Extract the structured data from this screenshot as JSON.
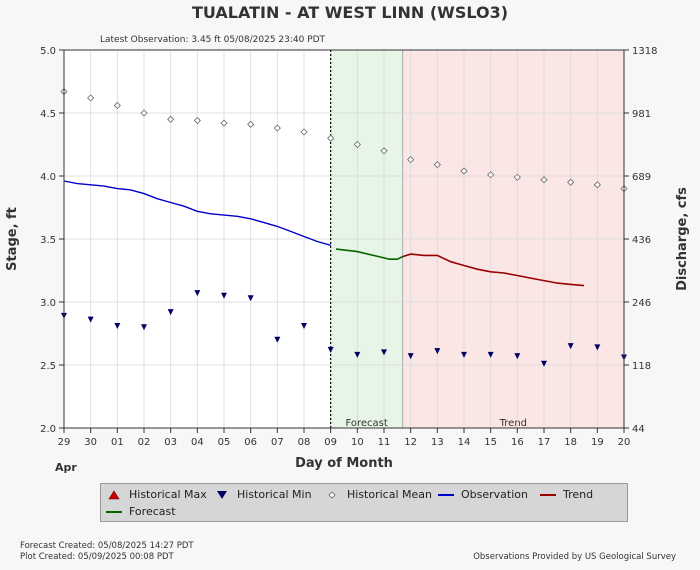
{
  "header": {
    "title": "TUALATIN - AT WEST LINN  (WSLO3)",
    "latest_observation": "Latest Observation: 3.45 ft 05/08/2025 23:40 PDT"
  },
  "footer": {
    "forecast_created": "Forecast Created: 05/08/2025 14:27 PDT",
    "plot_created": "Plot Created: 05/09/2025 00:08 PDT",
    "credit": "Observations Provided by US Geological Survey"
  },
  "legend": {
    "historical_max": "Historical Max",
    "historical_min": "Historical Min",
    "historical_mean": "Historical Mean",
    "observation": "Observation",
    "trend": "Trend",
    "forecast": "Forecast"
  },
  "colors": {
    "observation": "#0000cc",
    "forecast": "#006600",
    "trend": "#990000",
    "forecast_band": "#e6f5e6",
    "trend_band": "#fbe6e6",
    "max_marker": "#cc0000",
    "min_marker": "#000066",
    "mean_marker": "#666666"
  },
  "chart_data": {
    "type": "line",
    "xlabel": "Day of Month",
    "ylabel": "Stage, ft",
    "ylabel_right": "Discharge, cfs",
    "month_label": "Apr",
    "xlim": [
      0,
      21
    ],
    "ylim": [
      2.0,
      5.0
    ],
    "x_tick_labels": [
      "29",
      "30",
      "01",
      "02",
      "03",
      "04",
      "05",
      "06",
      "07",
      "08",
      "09",
      "10",
      "11",
      "12",
      "13",
      "14",
      "15",
      "16",
      "17",
      "18",
      "19",
      "20"
    ],
    "y_ticks": [
      2.0,
      2.5,
      3.0,
      3.5,
      4.0,
      4.5,
      5.0
    ],
    "y_tick_labels": [
      "2.0",
      "2.5",
      "3.0",
      "3.5",
      "4.0",
      "4.5",
      "5.0"
    ],
    "right_ticks": [
      {
        "stage": 2.0,
        "label": "44"
      },
      {
        "stage": 2.5,
        "label": "118"
      },
      {
        "stage": 3.0,
        "label": "246"
      },
      {
        "stage": 3.5,
        "label": "436"
      },
      {
        "stage": 4.0,
        "label": "689"
      },
      {
        "stage": 4.5,
        "label": "981"
      },
      {
        "stage": 5.0,
        "label": "1318"
      }
    ],
    "forecast_start": 10,
    "forecast_end": 12.7,
    "trend_end": 21,
    "band_labels": {
      "forecast": "Forecast",
      "trend": "Trend"
    },
    "historical_mean": {
      "x": [
        0,
        1,
        2,
        3,
        4,
        5,
        6,
        7,
        8,
        9,
        10,
        11,
        12,
        13,
        14,
        15,
        16,
        17,
        18,
        19,
        20,
        21
      ],
      "y": [
        4.67,
        4.62,
        4.56,
        4.5,
        4.45,
        4.44,
        4.42,
        4.41,
        4.38,
        4.35,
        4.3,
        4.25,
        4.2,
        4.13,
        4.09,
        4.04,
        4.01,
        3.99,
        3.97,
        3.95,
        3.93,
        3.9
      ]
    },
    "historical_min": {
      "x": [
        0,
        1,
        2,
        3,
        4,
        5,
        6,
        7,
        8,
        9,
        10,
        11,
        12,
        13,
        14,
        15,
        16,
        17,
        18,
        19,
        20,
        21
      ],
      "y": [
        2.89,
        2.86,
        2.81,
        2.8,
        2.92,
        3.07,
        3.05,
        3.03,
        2.7,
        2.81,
        2.62,
        2.58,
        2.6,
        2.57,
        2.61,
        2.58,
        2.58,
        2.57,
        2.51,
        2.65,
        2.64,
        2.56
      ]
    },
    "observation": {
      "x": [
        0,
        0.5,
        1,
        1.5,
        2,
        2.5,
        3,
        3.5,
        4,
        4.5,
        5,
        5.5,
        6,
        6.5,
        7,
        7.5,
        8,
        8.5,
        9,
        9.5,
        10
      ],
      "y": [
        3.96,
        3.94,
        3.93,
        3.92,
        3.9,
        3.89,
        3.86,
        3.82,
        3.79,
        3.76,
        3.72,
        3.7,
        3.69,
        3.68,
        3.66,
        3.63,
        3.6,
        3.56,
        3.52,
        3.48,
        3.45
      ]
    },
    "forecast": {
      "x": [
        10.2,
        10.6,
        11.0,
        11.4,
        11.8,
        12.2,
        12.5,
        12.7
      ],
      "y": [
        3.42,
        3.41,
        3.4,
        3.38,
        3.36,
        3.34,
        3.34,
        3.36
      ]
    },
    "trend": {
      "x": [
        12.7,
        13.0,
        13.5,
        14.0,
        14.5,
        15.0,
        15.5,
        16.0,
        16.5,
        17.0,
        17.5,
        18.0,
        18.5,
        19.0,
        19.5
      ],
      "y": [
        3.36,
        3.38,
        3.37,
        3.37,
        3.32,
        3.29,
        3.26,
        3.24,
        3.23,
        3.21,
        3.19,
        3.17,
        3.15,
        3.14,
        3.13
      ]
    }
  }
}
